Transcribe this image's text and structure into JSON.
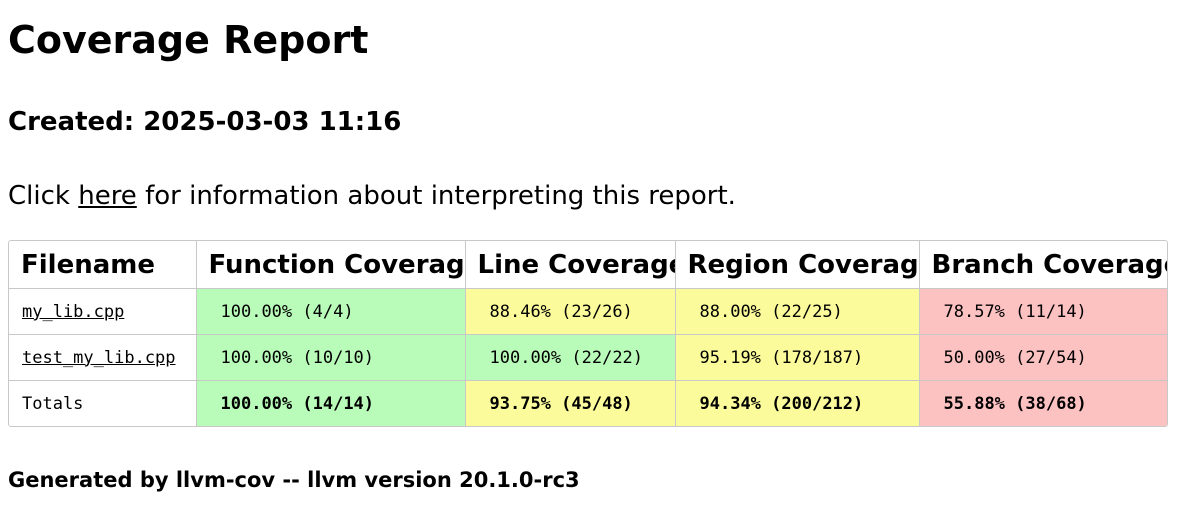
{
  "title": "Coverage Report",
  "created": "Created: 2025-03-03 11:16",
  "intro": {
    "before": "Click ",
    "link": "here",
    "after": " for information about interpreting this report."
  },
  "table": {
    "headers": [
      "Filename",
      "Function Coverage",
      "Line Coverage",
      "Region Coverage",
      "Branch Coverage"
    ],
    "rows": [
      {
        "filename": "my_lib.cpp",
        "is_link": true,
        "cells": [
          {
            "text": "100.00% (4/4)",
            "color": "#b9fcb9"
          },
          {
            "text": "88.46% (23/26)",
            "color": "#fbfb9c"
          },
          {
            "text": "88.00% (22/25)",
            "color": "#fbfb9c"
          },
          {
            "text": "78.57% (11/14)",
            "color": "#fcc1c1"
          }
        ]
      },
      {
        "filename": "test_my_lib.cpp",
        "is_link": true,
        "cells": [
          {
            "text": "100.00% (10/10)",
            "color": "#b9fcb9"
          },
          {
            "text": "100.00% (22/22)",
            "color": "#b9fcb9"
          },
          {
            "text": "95.19% (178/187)",
            "color": "#fbfb9c"
          },
          {
            "text": "50.00% (27/54)",
            "color": "#fcc1c1"
          }
        ]
      },
      {
        "filename": "Totals",
        "is_link": false,
        "cells": [
          {
            "text": "100.00% (14/14)",
            "color": "#b9fcb9"
          },
          {
            "text": "93.75% (45/48)",
            "color": "#fbfb9c"
          },
          {
            "text": "94.34% (200/212)",
            "color": "#fbfb9c"
          },
          {
            "text": "55.88% (38/68)",
            "color": "#fcc1c1"
          }
        ]
      }
    ]
  },
  "footer": "Generated by llvm-cov -- llvm version 20.1.0-rc3",
  "colors": {
    "good": "#b9fcb9",
    "medium": "#fbfb9c",
    "bad": "#fcc1c1",
    "border": "#c8c8c8"
  }
}
